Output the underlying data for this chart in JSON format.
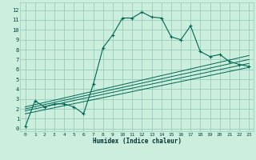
{
  "title": "",
  "xlabel": "Humidex (Indice chaleur)",
  "bg_color": "#cceedd",
  "grid_color": "#99ccbb",
  "line_color": "#006655",
  "xlim": [
    -0.5,
    23.5
  ],
  "ylim": [
    -0.3,
    12.8
  ],
  "xticks": [
    0,
    1,
    2,
    3,
    4,
    5,
    6,
    7,
    8,
    9,
    10,
    11,
    12,
    13,
    14,
    15,
    16,
    17,
    18,
    19,
    20,
    21,
    22,
    23
  ],
  "yticks": [
    0,
    1,
    2,
    3,
    4,
    5,
    6,
    7,
    8,
    9,
    10,
    11,
    12
  ],
  "main_x": [
    0,
    1,
    2,
    3,
    4,
    5,
    6,
    7,
    8,
    9,
    10,
    11,
    12,
    13,
    14,
    15,
    16,
    17,
    18,
    19,
    20,
    21,
    22,
    23
  ],
  "main_y": [
    0.2,
    2.8,
    2.2,
    2.5,
    2.5,
    2.2,
    1.5,
    4.5,
    8.2,
    9.5,
    11.2,
    11.2,
    11.8,
    11.3,
    11.2,
    9.3,
    9.0,
    10.4,
    7.8,
    7.3,
    7.5,
    6.8,
    6.5,
    6.3
  ],
  "ref_lines": [
    [
      [
        0,
        23
      ],
      [
        1.5,
        6.2
      ]
    ],
    [
      [
        0,
        23
      ],
      [
        1.8,
        6.6
      ]
    ],
    [
      [
        0,
        23
      ],
      [
        2.0,
        7.0
      ]
    ],
    [
      [
        0,
        23
      ],
      [
        2.2,
        7.4
      ]
    ]
  ]
}
